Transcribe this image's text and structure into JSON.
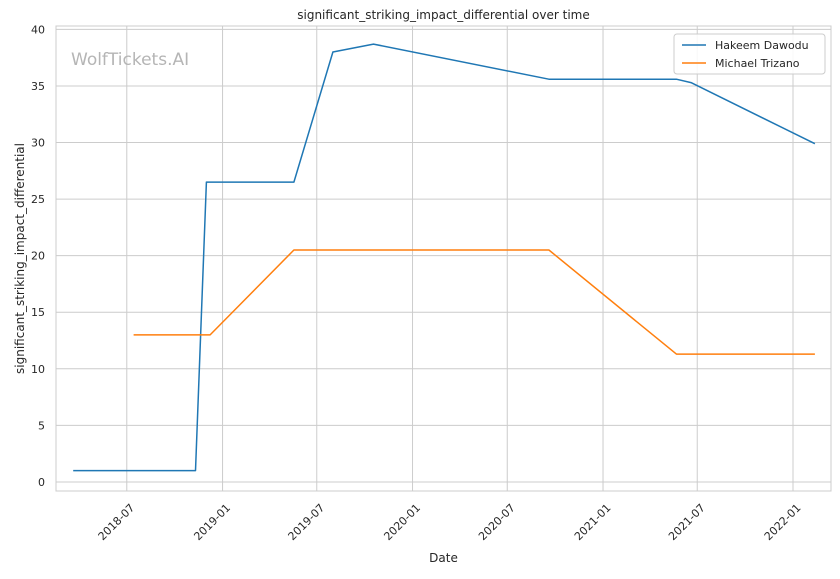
{
  "watermark": "WolfTickets.AI",
  "chart_data": {
    "type": "line",
    "title": "significant_striking_impact_differential over time",
    "xlabel": "Date",
    "ylabel": "significant_striking_impact_differential",
    "x_axis": "date",
    "xlim": [
      "2018-02-15",
      "2022-03-15"
    ],
    "ylim": [
      -0.8,
      40.3
    ],
    "x_ticks": [
      "2018-07",
      "2019-01",
      "2019-07",
      "2020-01",
      "2020-07",
      "2021-01",
      "2021-07",
      "2022-01"
    ],
    "y_ticks": [
      0,
      5,
      10,
      15,
      20,
      25,
      30,
      35,
      40
    ],
    "grid": true,
    "legend_position": "top-right",
    "series": [
      {
        "name": "Hakeem Dawodu",
        "color": "#1f77b4",
        "points": [
          {
            "x": "2018-03-20",
            "y": 1.0
          },
          {
            "x": "2018-11-10",
            "y": 1.0
          },
          {
            "x": "2018-12-01",
            "y": 26.5
          },
          {
            "x": "2019-05-18",
            "y": 26.5
          },
          {
            "x": "2019-08-01",
            "y": 38.0
          },
          {
            "x": "2019-10-18",
            "y": 38.7
          },
          {
            "x": "2020-09-19",
            "y": 35.6
          },
          {
            "x": "2021-05-22",
            "y": 35.6
          },
          {
            "x": "2021-06-19",
            "y": 35.3
          },
          {
            "x": "2022-02-12",
            "y": 29.9
          }
        ]
      },
      {
        "name": "Michael Trizano",
        "color": "#ff7f0e",
        "points": [
          {
            "x": "2018-07-14",
            "y": 13.0
          },
          {
            "x": "2018-12-08",
            "y": 13.0
          },
          {
            "x": "2019-05-18",
            "y": 20.5
          },
          {
            "x": "2020-09-19",
            "y": 20.5
          },
          {
            "x": "2021-05-22",
            "y": 11.3
          },
          {
            "x": "2022-02-12",
            "y": 11.3
          }
        ]
      }
    ]
  }
}
